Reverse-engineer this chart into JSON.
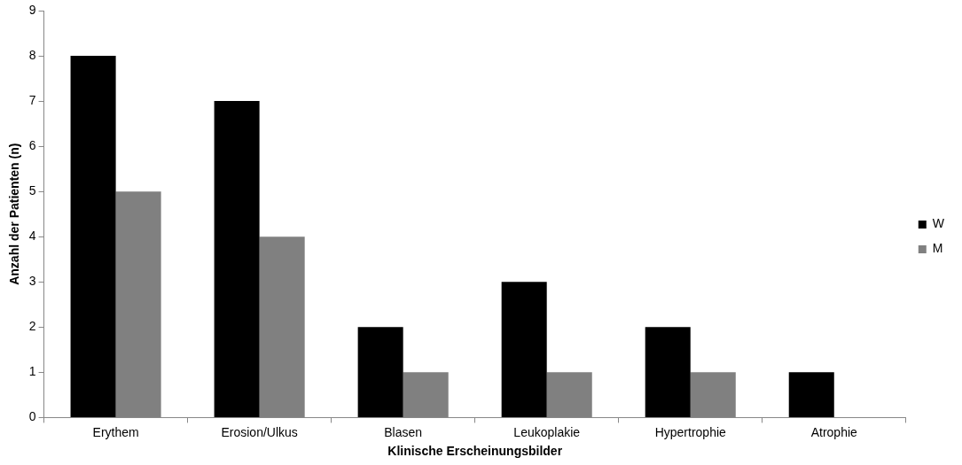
{
  "chart_data": {
    "type": "bar",
    "xlabel": "Klinische Erscheinungsbilder",
    "ylabel": "Anzahl der Patienten (n)",
    "categories": [
      "Erythem",
      "Erosion/Ulkus",
      "Blasen",
      "Leukoplakie",
      "Hypertrophie",
      "Atrophie"
    ],
    "series": [
      {
        "name": "W",
        "color": "#000000",
        "values": [
          8,
          7,
          2,
          3,
          2,
          1
        ]
      },
      {
        "name": "M",
        "color": "#808080",
        "values": [
          5,
          4,
          1,
          1,
          1,
          0
        ]
      }
    ],
    "ylim": [
      0,
      9
    ],
    "yticks": [
      0,
      1,
      2,
      3,
      4,
      5,
      6,
      7,
      8,
      9
    ],
    "grid": false,
    "legend": "right"
  }
}
